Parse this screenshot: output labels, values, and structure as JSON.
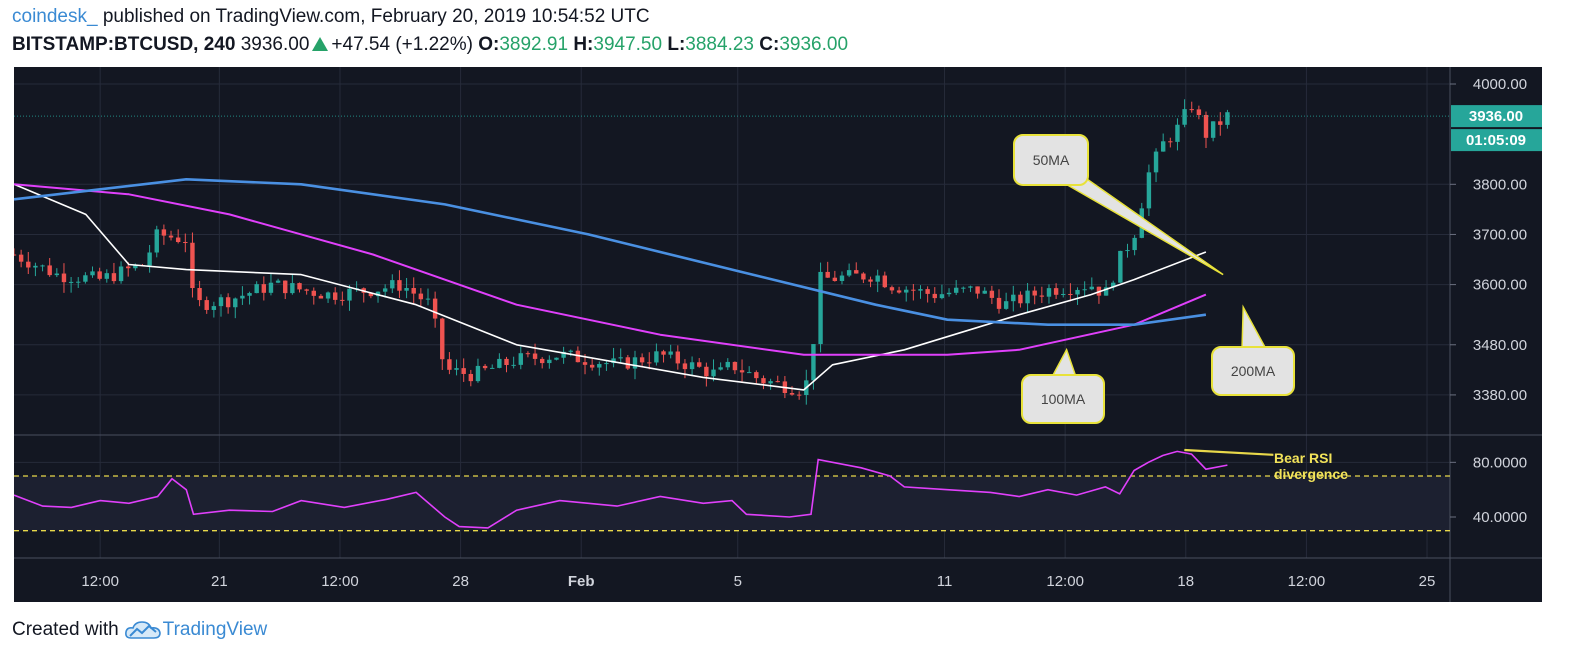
{
  "header": {
    "brand": "coindesk_",
    "published": "published on TradingView.com, February 20, 2019 10:54:52 UTC",
    "symbol": "BITSTAMP:BTCUSD, 240",
    "last": "3936.00",
    "change": "+47.54 (+1.22%)",
    "open_label": "O:",
    "open": "3892.91",
    "high_label": "H:",
    "high": "3947.50",
    "low_label": "L:",
    "low": "3884.23",
    "close_label": "C:",
    "close": "3936.00"
  },
  "footer": {
    "created_with": "Created with",
    "brand": "TradingView"
  },
  "colors": {
    "background": "#131722",
    "up": "#26a69a",
    "down": "#ef5350",
    "ma50": "#ffffff",
    "ma100": "#e040fb",
    "ma200": "#4a90e2",
    "rsi": "#e040fb",
    "rsi_band": "#e8d84a",
    "price_tag": "#26a69a"
  },
  "chart_data": {
    "type": "candlestick",
    "symbol": "BITSTAMP:BTCUSD",
    "interval": "240",
    "x_tick_labels": [
      "12:00",
      "21",
      "12:00",
      "28",
      "Feb",
      "5",
      "11",
      "12:00",
      "18",
      "12:00",
      "25"
    ],
    "price_axis_labels": [
      "4000.00",
      "3800.00",
      "3700.00",
      "3600.00",
      "3480.00",
      "3380.00"
    ],
    "price_ylim": [
      3320,
      4010
    ],
    "current_price": "3936.00",
    "countdown": "01:05:09",
    "ohlc_last": {
      "open": 3892.91,
      "high": 3947.5,
      "low": 3884.23,
      "close": 3936.0,
      "change": 47.54,
      "change_pct": 1.22
    },
    "price_path": [
      [
        0,
        3660
      ],
      [
        0.03,
        3620
      ],
      [
        0.06,
        3610
      ],
      [
        0.09,
        3640
      ],
      [
        0.1,
        3700
      ],
      [
        0.12,
        3690
      ],
      [
        0.125,
        3560
      ],
      [
        0.15,
        3570
      ],
      [
        0.18,
        3600
      ],
      [
        0.22,
        3580
      ],
      [
        0.25,
        3590
      ],
      [
        0.27,
        3600
      ],
      [
        0.29,
        3560
      ],
      [
        0.3,
        3430
      ],
      [
        0.32,
        3420
      ],
      [
        0.35,
        3450
      ],
      [
        0.38,
        3460
      ],
      [
        0.42,
        3440
      ],
      [
        0.45,
        3460
      ],
      [
        0.49,
        3420
      ],
      [
        0.5,
        3440
      ],
      [
        0.52,
        3410
      ],
      [
        0.55,
        3390
      ],
      [
        0.555,
        3430
      ],
      [
        0.56,
        3610
      ],
      [
        0.6,
        3620
      ],
      [
        0.61,
        3600
      ],
      [
        0.64,
        3580
      ],
      [
        0.67,
        3590
      ],
      [
        0.69,
        3560
      ],
      [
        0.72,
        3590
      ],
      [
        0.75,
        3600
      ],
      [
        0.76,
        3580
      ],
      [
        0.77,
        3650
      ],
      [
        0.78,
        3700
      ],
      [
        0.79,
        3820
      ],
      [
        0.8,
        3880
      ],
      [
        0.81,
        3910
      ],
      [
        0.82,
        3960
      ],
      [
        0.83,
        3900
      ],
      [
        0.845,
        3936
      ]
    ],
    "moving_averages": [
      {
        "name": "50MA",
        "points": [
          [
            0,
            3800
          ],
          [
            0.05,
            3740
          ],
          [
            0.08,
            3640
          ],
          [
            0.12,
            3630
          ],
          [
            0.2,
            3620
          ],
          [
            0.28,
            3560
          ],
          [
            0.35,
            3480
          ],
          [
            0.48,
            3415
          ],
          [
            0.55,
            3390
          ],
          [
            0.57,
            3440
          ],
          [
            0.62,
            3470
          ],
          [
            0.7,
            3540
          ],
          [
            0.75,
            3580
          ],
          [
            0.78,
            3610
          ],
          [
            0.83,
            3665
          ]
        ]
      },
      {
        "name": "100MA",
        "points": [
          [
            0,
            3800
          ],
          [
            0.08,
            3780
          ],
          [
            0.15,
            3740
          ],
          [
            0.25,
            3660
          ],
          [
            0.35,
            3560
          ],
          [
            0.45,
            3500
          ],
          [
            0.55,
            3460
          ],
          [
            0.65,
            3460
          ],
          [
            0.7,
            3470
          ],
          [
            0.78,
            3520
          ],
          [
            0.83,
            3580
          ]
        ]
      },
      {
        "name": "200MA",
        "points": [
          [
            0,
            3770
          ],
          [
            0.06,
            3790
          ],
          [
            0.12,
            3810
          ],
          [
            0.2,
            3800
          ],
          [
            0.3,
            3760
          ],
          [
            0.4,
            3700
          ],
          [
            0.5,
            3630
          ],
          [
            0.6,
            3560
          ],
          [
            0.65,
            3530
          ],
          [
            0.72,
            3520
          ],
          [
            0.78,
            3520
          ],
          [
            0.83,
            3540
          ]
        ]
      }
    ],
    "annotations": [
      {
        "text": "50MA",
        "target": "50MA"
      },
      {
        "text": "100MA",
        "target": "100MA"
      },
      {
        "text": "200MA",
        "target": "200MA"
      },
      {
        "text": "Bear RSI\ndivergence",
        "target": "RSI"
      }
    ],
    "rsi": {
      "axis_labels": [
        "80.0000",
        "40.0000"
      ],
      "ylim": [
        10,
        100
      ],
      "bands": [
        70,
        30
      ],
      "values": [
        [
          0,
          56
        ],
        [
          0.02,
          48
        ],
        [
          0.04,
          47
        ],
        [
          0.06,
          52
        ],
        [
          0.08,
          50
        ],
        [
          0.1,
          55
        ],
        [
          0.11,
          68
        ],
        [
          0.12,
          60
        ],
        [
          0.125,
          42
        ],
        [
          0.15,
          45
        ],
        [
          0.18,
          44
        ],
        [
          0.2,
          52
        ],
        [
          0.23,
          47
        ],
        [
          0.26,
          53
        ],
        [
          0.28,
          58
        ],
        [
          0.3,
          40
        ],
        [
          0.31,
          33
        ],
        [
          0.33,
          32
        ],
        [
          0.35,
          45
        ],
        [
          0.38,
          52
        ],
        [
          0.42,
          48
        ],
        [
          0.45,
          55
        ],
        [
          0.48,
          50
        ],
        [
          0.5,
          52
        ],
        [
          0.51,
          42
        ],
        [
          0.54,
          40
        ],
        [
          0.555,
          42
        ],
        [
          0.56,
          82
        ],
        [
          0.59,
          76
        ],
        [
          0.61,
          70
        ],
        [
          0.62,
          62
        ],
        [
          0.65,
          60
        ],
        [
          0.68,
          58
        ],
        [
          0.7,
          55
        ],
        [
          0.72,
          60
        ],
        [
          0.74,
          56
        ],
        [
          0.76,
          62
        ],
        [
          0.77,
          57
        ],
        [
          0.78,
          74
        ],
        [
          0.79,
          80
        ],
        [
          0.8,
          85
        ],
        [
          0.81,
          88
        ],
        [
          0.82,
          86
        ],
        [
          0.83,
          75
        ],
        [
          0.845,
          78
        ]
      ]
    }
  }
}
